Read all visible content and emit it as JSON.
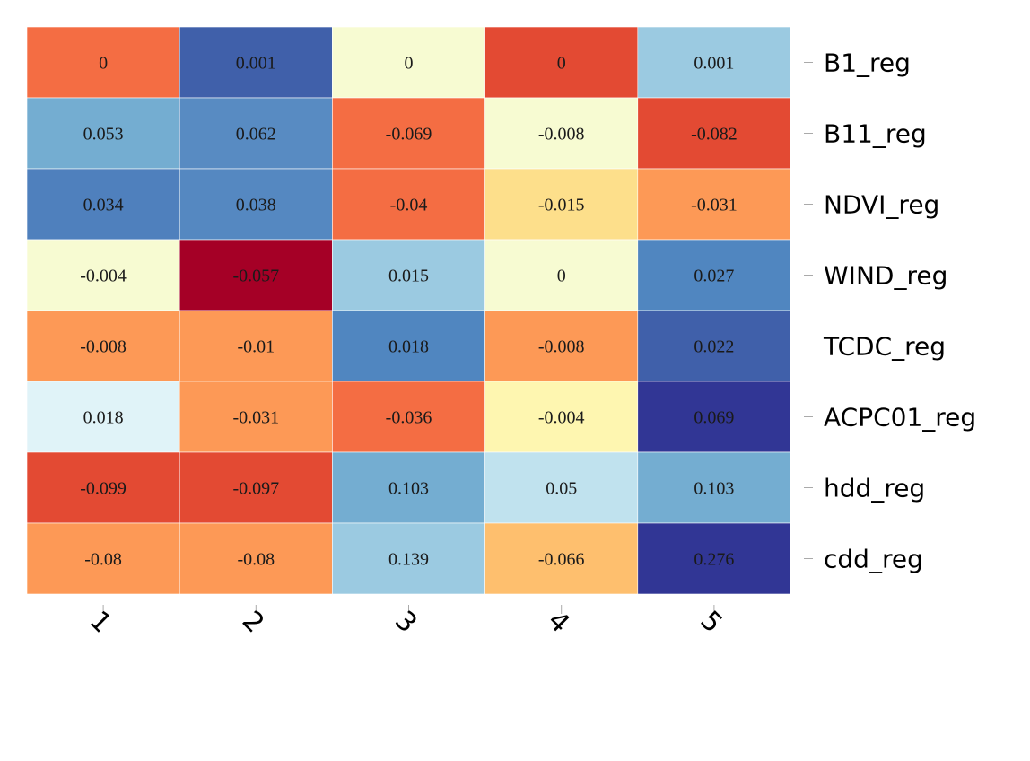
{
  "chart_data": {
    "type": "heatmap",
    "title": "",
    "xlabel": "",
    "ylabel": "",
    "x_categories": [
      "1",
      "2",
      "3",
      "4",
      "5"
    ],
    "y_categories": [
      "B1_reg",
      "B11_reg",
      "NDVI_reg",
      "WIND_reg",
      "TCDC_reg",
      "ACPC01_reg",
      "hdd_reg",
      "cdd_reg"
    ],
    "values": [
      [
        "0",
        "0.001",
        "0",
        "0",
        "0.001"
      ],
      [
        "0.053",
        "0.062",
        "-0.069",
        "-0.008",
        "-0.082"
      ],
      [
        "0.034",
        "0.038",
        "-0.04",
        "-0.015",
        "-0.031"
      ],
      [
        "-0.004",
        "-0.057",
        "0.015",
        "0",
        "0.027"
      ],
      [
        "-0.008",
        "-0.01",
        "0.018",
        "-0.008",
        "0.022"
      ],
      [
        "0.018",
        "-0.031",
        "-0.036",
        "-0.004",
        "0.069"
      ],
      [
        "-0.099",
        "-0.097",
        "0.103",
        "0.05",
        "0.103"
      ],
      [
        "-0.08",
        "-0.08",
        "0.139",
        "-0.066",
        "0.276"
      ]
    ],
    "colors": [
      [
        "#f46d43",
        "#4060aa",
        "#f7fbd2",
        "#e34a33",
        "#9bcae1"
      ],
      [
        "#74add1",
        "#588bc2",
        "#f46d43",
        "#f7fbd2",
        "#e34a33"
      ],
      [
        "#4f80bd",
        "#5588c1",
        "#f46d43",
        "#fddf8b",
        "#fd9956"
      ],
      [
        "#f7fbd2",
        "#a50026",
        "#9bcae1",
        "#f7fbd2",
        "#5086c0"
      ],
      [
        "#fd9956",
        "#fd9956",
        "#5086c0",
        "#fd9956",
        "#4060aa"
      ],
      [
        "#e0f3f8",
        "#fd9956",
        "#f46d43",
        "#fef6b0",
        "#313695"
      ],
      [
        "#e34a33",
        "#e34a33",
        "#74add1",
        "#c0e2ee",
        "#74add1"
      ],
      [
        "#fd9956",
        "#fd9956",
        "#9bcae1",
        "#febf6e",
        "#313695"
      ]
    ],
    "colorscale": "RdYlBu",
    "legend": "none",
    "grid": false
  }
}
